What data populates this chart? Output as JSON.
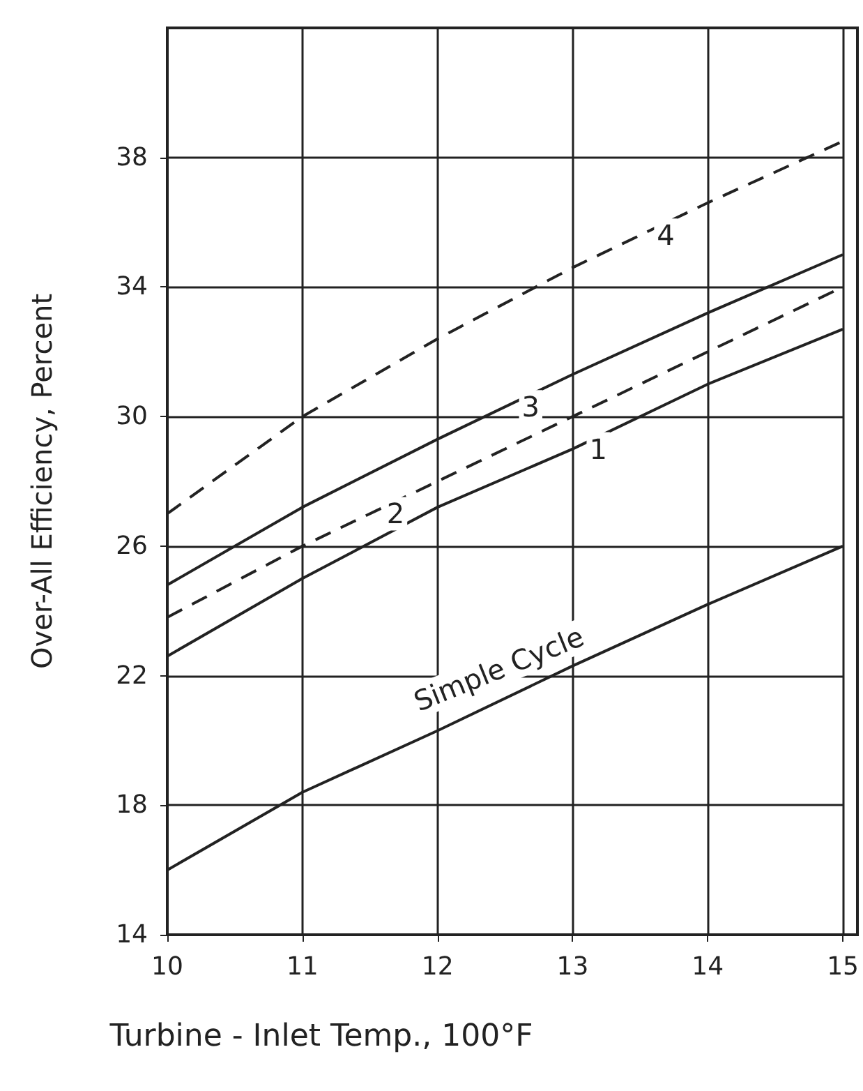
{
  "chart_data": {
    "type": "line",
    "xlabel": "Turbine - Inlet Temp., 100°F",
    "ylabel": "Over-All Efficiency, Percent",
    "x": [
      10,
      11,
      12,
      13,
      14,
      15
    ],
    "series": [
      {
        "name": "Simple Cycle",
        "color": "#222222",
        "line_style": "solid",
        "values": [
          16,
          18.4,
          20.3,
          22.3,
          24.2,
          26
        ]
      },
      {
        "name": "1",
        "color": "#222222",
        "line_style": "solid",
        "values": [
          22.6,
          25,
          27.2,
          29,
          31,
          32.7
        ]
      },
      {
        "name": "2",
        "color": "#222222",
        "line_style": "dashed",
        "values": [
          23.8,
          26,
          28,
          30,
          32,
          34
        ]
      },
      {
        "name": "3",
        "color": "#222222",
        "line_style": "solid",
        "values": [
          24.8,
          27.2,
          29.3,
          31.3,
          33.2,
          35
        ]
      },
      {
        "name": "4",
        "color": "#222222",
        "line_style": "dashed",
        "values": [
          27,
          30,
          32.4,
          34.6,
          36.6,
          38.5
        ]
      }
    ],
    "xlim": [
      10,
      15
    ],
    "xticks": [
      10,
      11,
      12,
      13,
      14,
      15
    ],
    "ylim": [
      14,
      42
    ],
    "yticks": [
      14,
      18,
      22,
      26,
      30,
      34,
      38
    ],
    "grid": true,
    "marker": "none",
    "legend": false
  }
}
